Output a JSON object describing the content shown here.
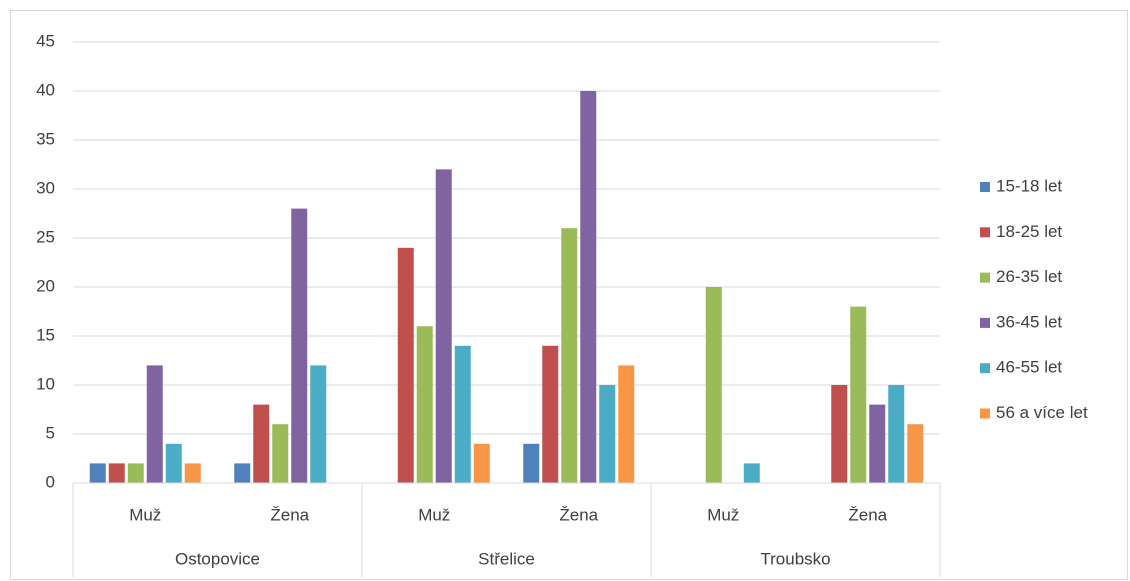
{
  "chart_data": {
    "type": "bar",
    "categories": [
      "Muž",
      "Žena",
      "Muž",
      "Žena",
      "Muž",
      "Žena"
    ],
    "groups": [
      "Ostopovice",
      "Střelice",
      "Troubsko"
    ],
    "series": [
      {
        "name": "15-18 let",
        "color": "#4f81bd",
        "values": [
          2,
          2,
          0,
          4,
          0,
          0
        ]
      },
      {
        "name": "18-25 let",
        "color": "#c0504d",
        "values": [
          2,
          8,
          24,
          14,
          0,
          10
        ]
      },
      {
        "name": "26-35 let",
        "color": "#9bbb59",
        "values": [
          2,
          6,
          16,
          26,
          20,
          18
        ]
      },
      {
        "name": "36-45 let",
        "color": "#8064a2",
        "values": [
          12,
          28,
          32,
          40,
          0,
          8
        ]
      },
      {
        "name": "46-55 let",
        "color": "#4bacc6",
        "values": [
          4,
          12,
          14,
          10,
          2,
          10
        ]
      },
      {
        "name": "56 a více let",
        "color": "#f79646",
        "values": [
          2,
          0,
          4,
          12,
          0,
          6
        ]
      }
    ],
    "ylim": [
      0,
      45
    ],
    "yticks": [
      0,
      5,
      10,
      15,
      20,
      25,
      30,
      35,
      40,
      45
    ],
    "grid": true,
    "legend": "right"
  }
}
